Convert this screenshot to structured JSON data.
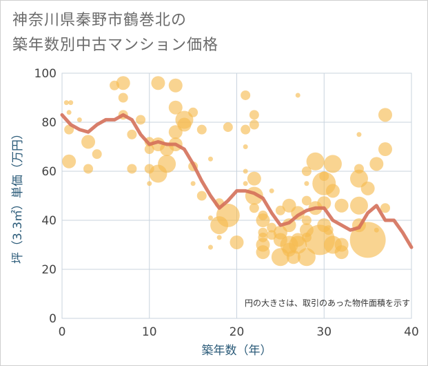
{
  "title": "神奈川県秦野市鶴巻北の\n築年数別中古マンション価格",
  "chart_data": {
    "type": "scatter",
    "title": "神奈川県秦野市鶴巻北の築年数別中古マンション価格",
    "xlabel": "築年数（年）",
    "ylabel": "坪（3.3㎡）単価（万円）",
    "xlim": [
      0,
      40
    ],
    "ylim": [
      0,
      100
    ],
    "xticks": [
      0,
      10,
      20,
      30,
      40
    ],
    "yticks": [
      0,
      20,
      40,
      60,
      80,
      100
    ],
    "grid": true,
    "annotation": "円の大きさは、取引のあった物件面積を示す",
    "colors": {
      "bubble": "#f5b94e",
      "line": "#d4705a",
      "grid": "#c8d3de"
    },
    "bubbles": [
      {
        "x": 0.5,
        "y": 88,
        "s": 1
      },
      {
        "x": 0.8,
        "y": 84,
        "s": 1
      },
      {
        "x": 0.8,
        "y": 77,
        "s": 2
      },
      {
        "x": 0.8,
        "y": 64,
        "s": 3
      },
      {
        "x": 1,
        "y": 88,
        "s": 1
      },
      {
        "x": 2,
        "y": 81,
        "s": 1
      },
      {
        "x": 3,
        "y": 72,
        "s": 3
      },
      {
        "x": 3,
        "y": 61,
        "s": 2
      },
      {
        "x": 4,
        "y": 67,
        "s": 2
      },
      {
        "x": 6,
        "y": 95,
        "s": 2
      },
      {
        "x": 7,
        "y": 96,
        "s": 3
      },
      {
        "x": 7,
        "y": 90,
        "s": 2
      },
      {
        "x": 7,
        "y": 83,
        "s": 2
      },
      {
        "x": 8,
        "y": 75,
        "s": 2
      },
      {
        "x": 8,
        "y": 61,
        "s": 2
      },
      {
        "x": 9,
        "y": 81,
        "s": 2
      },
      {
        "x": 10,
        "y": 72,
        "s": 2
      },
      {
        "x": 10,
        "y": 69,
        "s": 2
      },
      {
        "x": 10,
        "y": 61,
        "s": 2
      },
      {
        "x": 10,
        "y": 55,
        "s": 1
      },
      {
        "x": 11,
        "y": 96,
        "s": 3
      },
      {
        "x": 11,
        "y": 71,
        "s": 3
      },
      {
        "x": 11,
        "y": 59,
        "s": 4
      },
      {
        "x": 12,
        "y": 69,
        "s": 3
      },
      {
        "x": 12,
        "y": 63,
        "s": 4
      },
      {
        "x": 13,
        "y": 95,
        "s": 3
      },
      {
        "x": 13,
        "y": 86,
        "s": 3
      },
      {
        "x": 13,
        "y": 76,
        "s": 3
      },
      {
        "x": 13,
        "y": 71,
        "s": 3
      },
      {
        "x": 14,
        "y": 81,
        "s": 4
      },
      {
        "x": 14,
        "y": 79,
        "s": 3
      },
      {
        "x": 15,
        "y": 84,
        "s": 2
      },
      {
        "x": 15,
        "y": 62,
        "s": 2
      },
      {
        "x": 15,
        "y": 55,
        "s": 1
      },
      {
        "x": 16,
        "y": 77,
        "s": 2
      },
      {
        "x": 16,
        "y": 50,
        "s": 2
      },
      {
        "x": 17,
        "y": 41,
        "s": 1
      },
      {
        "x": 17,
        "y": 29,
        "s": 1
      },
      {
        "x": 17,
        "y": 65,
        "s": 1
      },
      {
        "x": 18,
        "y": 47,
        "s": 2
      },
      {
        "x": 18,
        "y": 38,
        "s": 4
      },
      {
        "x": 18,
        "y": 33,
        "s": 1
      },
      {
        "x": 19,
        "y": 78,
        "s": 2
      },
      {
        "x": 19,
        "y": 42,
        "s": 5
      },
      {
        "x": 20,
        "y": 31,
        "s": 3
      },
      {
        "x": 21,
        "y": 91,
        "s": 2
      },
      {
        "x": 21,
        "y": 77,
        "s": 2
      },
      {
        "x": 21,
        "y": 70,
        "s": 1
      },
      {
        "x": 21,
        "y": 60,
        "s": 1
      },
      {
        "x": 21,
        "y": 55,
        "s": 1
      },
      {
        "x": 22,
        "y": 83,
        "s": 2
      },
      {
        "x": 22,
        "y": 79,
        "s": 2
      },
      {
        "x": 22,
        "y": 57,
        "s": 3
      },
      {
        "x": 22,
        "y": 50,
        "s": 4
      },
      {
        "x": 22,
        "y": 45,
        "s": 2
      },
      {
        "x": 23,
        "y": 42,
        "s": 2
      },
      {
        "x": 23,
        "y": 40,
        "s": 3
      },
      {
        "x": 23,
        "y": 35,
        "s": 2
      },
      {
        "x": 23,
        "y": 33,
        "s": 2
      },
      {
        "x": 23,
        "y": 30,
        "s": 3
      },
      {
        "x": 23,
        "y": 27,
        "s": 3
      },
      {
        "x": 24,
        "y": 52,
        "s": 1
      },
      {
        "x": 24,
        "y": 37,
        "s": 2
      },
      {
        "x": 24,
        "y": 34,
        "s": 2
      },
      {
        "x": 25,
        "y": 44,
        "s": 2
      },
      {
        "x": 25,
        "y": 35,
        "s": 3
      },
      {
        "x": 25,
        "y": 32,
        "s": 3
      },
      {
        "x": 25,
        "y": 25,
        "s": 4
      },
      {
        "x": 26,
        "y": 46,
        "s": 3
      },
      {
        "x": 26,
        "y": 38,
        "s": 3
      },
      {
        "x": 26,
        "y": 30,
        "s": 4
      },
      {
        "x": 26,
        "y": 28,
        "s": 3
      },
      {
        "x": 26.5,
        "y": 25,
        "s": 3
      },
      {
        "x": 27,
        "y": 91,
        "s": 1
      },
      {
        "x": 27,
        "y": 43,
        "s": 3
      },
      {
        "x": 27,
        "y": 32,
        "s": 3
      },
      {
        "x": 27,
        "y": 30,
        "s": 4
      },
      {
        "x": 28,
        "y": 60,
        "s": 2
      },
      {
        "x": 28,
        "y": 55,
        "s": 1
      },
      {
        "x": 28,
        "y": 48,
        "s": 2
      },
      {
        "x": 28,
        "y": 40,
        "s": 2
      },
      {
        "x": 28,
        "y": 36,
        "s": 3
      },
      {
        "x": 28,
        "y": 33,
        "s": 2
      },
      {
        "x": 28,
        "y": 25,
        "s": 4
      },
      {
        "x": 29,
        "y": 64,
        "s": 4
      },
      {
        "x": 29,
        "y": 45,
        "s": 3
      },
      {
        "x": 29.5,
        "y": 32,
        "s": 6
      },
      {
        "x": 30,
        "y": 58,
        "s": 2
      },
      {
        "x": 30,
        "y": 55,
        "s": 5
      },
      {
        "x": 30,
        "y": 47,
        "s": 3
      },
      {
        "x": 30,
        "y": 38,
        "s": 3
      },
      {
        "x": 30.5,
        "y": 36,
        "s": 2
      },
      {
        "x": 31,
        "y": 63,
        "s": 4
      },
      {
        "x": 31,
        "y": 52,
        "s": 3
      },
      {
        "x": 31,
        "y": 30,
        "s": 4
      },
      {
        "x": 32,
        "y": 46,
        "s": 3
      },
      {
        "x": 32,
        "y": 30,
        "s": 3
      },
      {
        "x": 32,
        "y": 27,
        "s": 3
      },
      {
        "x": 34,
        "y": 75,
        "s": 1
      },
      {
        "x": 34,
        "y": 61,
        "s": 2
      },
      {
        "x": 34,
        "y": 57,
        "s": 4
      },
      {
        "x": 34,
        "y": 46,
        "s": 4
      },
      {
        "x": 34,
        "y": 38,
        "s": 3
      },
      {
        "x": 35,
        "y": 53,
        "s": 3
      },
      {
        "x": 35,
        "y": 32,
        "s": 7
      },
      {
        "x": 36,
        "y": 63,
        "s": 3
      },
      {
        "x": 36,
        "y": 36,
        "s": 1
      },
      {
        "x": 37,
        "y": 83,
        "s": 3
      },
      {
        "x": 37,
        "y": 69,
        "s": 3
      },
      {
        "x": 37,
        "y": 45,
        "s": 2
      }
    ],
    "trend": {
      "x": [
        0,
        1,
        2,
        3,
        4,
        5,
        6,
        7,
        8,
        9,
        10,
        11,
        12,
        13,
        14,
        15,
        16,
        17,
        18,
        19,
        20,
        21,
        22,
        23,
        24,
        25,
        26,
        27,
        28,
        29,
        30,
        31,
        32,
        33,
        34,
        35,
        36,
        37,
        38,
        39,
        40
      ],
      "y": [
        83,
        79,
        77,
        76,
        79,
        81,
        81,
        83,
        81,
        75,
        71,
        72,
        71,
        71,
        69,
        63,
        56,
        50,
        45,
        48,
        52,
        52,
        51,
        49,
        43,
        38,
        39,
        42,
        44,
        45,
        45,
        40,
        38,
        36,
        37,
        43,
        46,
        40,
        40,
        35,
        29
      ]
    }
  }
}
